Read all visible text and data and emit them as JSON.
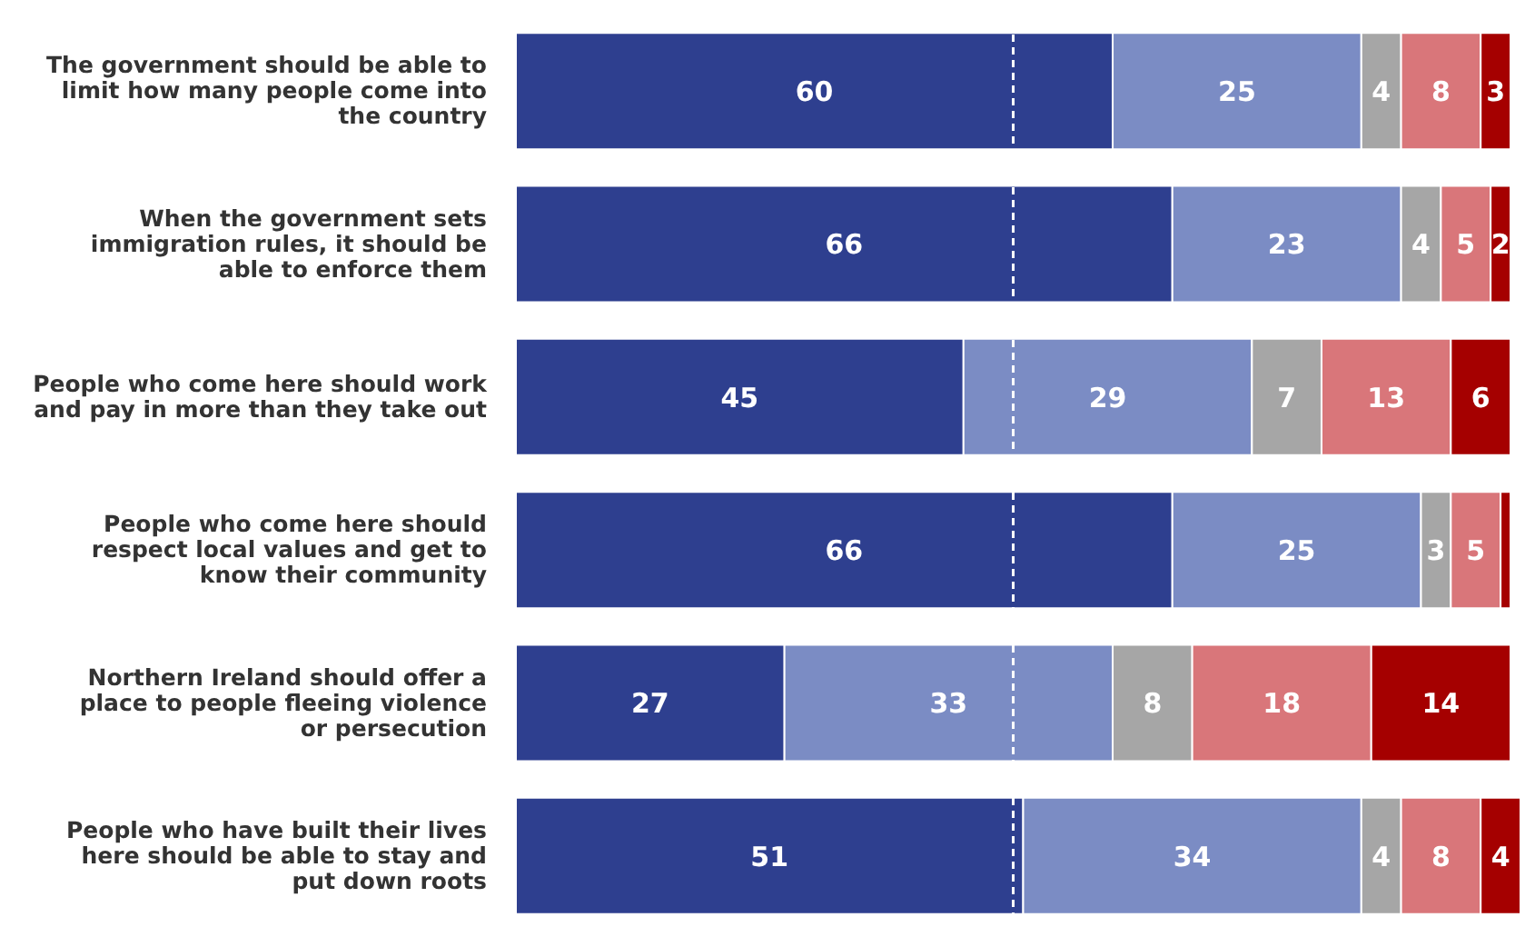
{
  "chart_data": {
    "type": "bar",
    "orientation": "horizontal",
    "stacked": true,
    "categories": [
      "The government should be able to limit how many people come into the country",
      "When the government sets immigration rules, it should be able to enforce them",
      "People who come here should work and pay in more than they take out",
      "People who come here should respect local values and get to know their community",
      "Northern Ireland should offer a place to people fleeing violence or persecution",
      "People who have built their lives here should be able to stay and put down roots"
    ],
    "series": [
      {
        "color": "#2e3f8f",
        "values": [
          60,
          66,
          45,
          66,
          27,
          51
        ]
      },
      {
        "color": "#7b8cc4",
        "values": [
          25,
          23,
          29,
          25,
          33,
          34
        ]
      },
      {
        "color": "#a6a6a6",
        "values": [
          4,
          4,
          7,
          3,
          8,
          4
        ]
      },
      {
        "color": "#d9767a",
        "values": [
          8,
          5,
          13,
          5,
          18,
          8
        ]
      },
      {
        "color": "#a50000",
        "values": [
          3,
          2,
          6,
          1,
          14,
          4
        ],
        "value_labels": [
          "3",
          "2",
          "6",
          null,
          "14",
          "4"
        ]
      }
    ],
    "data_labels": true,
    "ref_lines": [
      {
        "axis": "x",
        "value": 50,
        "color": "#ffffff",
        "line_style": "dashed"
      }
    ],
    "legend": false,
    "grid": false
  }
}
